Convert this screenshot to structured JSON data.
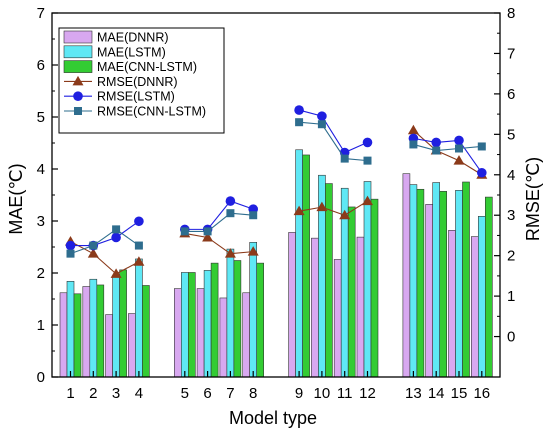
{
  "chart_data": {
    "type": "bar",
    "xlabel": "Model type",
    "ylabel_left": "MAE(℃)",
    "ylabel_right": "RMSE(℃)",
    "ylim_left": [
      0,
      7
    ],
    "ylim_right": [
      -1,
      8
    ],
    "yticks_left": [
      "0",
      "1",
      "2",
      "3",
      "4",
      "5",
      "6",
      "7"
    ],
    "yticks_right": [
      "0",
      "1",
      "2",
      "3",
      "4",
      "5",
      "6",
      "7",
      "8"
    ],
    "categories": [
      "1",
      "2",
      "3",
      "4",
      "5",
      "6",
      "7",
      "8",
      "9",
      "10",
      "11",
      "12",
      "13",
      "14",
      "15",
      "16"
    ],
    "groups": [
      [
        0,
        1,
        2,
        3
      ],
      [
        4,
        5,
        6,
        7
      ],
      [
        8,
        9,
        10,
        11
      ],
      [
        12,
        13,
        14,
        15
      ]
    ],
    "bar_series": [
      {
        "name": "MAE(DNNR)",
        "color": "#d8a8f0",
        "values": [
          1.62,
          1.74,
          1.2,
          1.22,
          1.7,
          1.7,
          1.52,
          1.62,
          2.78,
          2.67,
          2.26,
          2.69,
          3.91,
          3.32,
          2.82,
          2.7
        ]
      },
      {
        "name": "MAE(LSTM)",
        "color": "#5fe8f5",
        "values": [
          1.84,
          1.88,
          1.92,
          2.27,
          2.01,
          2.05,
          2.46,
          2.59,
          4.37,
          3.88,
          3.63,
          3.76,
          3.7,
          3.74,
          3.59,
          3.09
        ]
      },
      {
        "name": "MAE(CNN-LSTM)",
        "color": "#33cc33",
        "values": [
          1.6,
          1.77,
          2.06,
          1.76,
          2.01,
          2.19,
          2.24,
          2.19,
          4.27,
          3.72,
          3.27,
          3.42,
          3.61,
          3.57,
          3.75,
          3.46
        ]
      }
    ],
    "line_series": [
      {
        "name": "RMSE(DNNR)",
        "color": "#8b3a1a",
        "marker": "triangle",
        "values": [
          2.35,
          2.05,
          1.55,
          1.85,
          2.55,
          2.45,
          2.05,
          2.1,
          3.1,
          3.2,
          3.0,
          3.35,
          5.1,
          4.6,
          4.35,
          4.0
        ]
      },
      {
        "name": "RMSE(LSTM)",
        "color": "#1f1fe0",
        "marker": "circle",
        "values": [
          2.25,
          2.25,
          2.45,
          2.85,
          2.65,
          2.65,
          3.35,
          3.15,
          5.6,
          5.45,
          4.55,
          4.8,
          4.9,
          4.8,
          4.85,
          4.05
        ]
      },
      {
        "name": "RMSE(CNN-LSTM)",
        "color": "#2e6d8e",
        "marker": "square",
        "values": [
          2.05,
          2.25,
          2.65,
          2.25,
          2.6,
          2.6,
          3.05,
          3.0,
          5.3,
          5.25,
          4.4,
          4.35,
          4.75,
          4.6,
          4.65,
          4.7
        ]
      }
    ],
    "legend_position": "top-left"
  }
}
